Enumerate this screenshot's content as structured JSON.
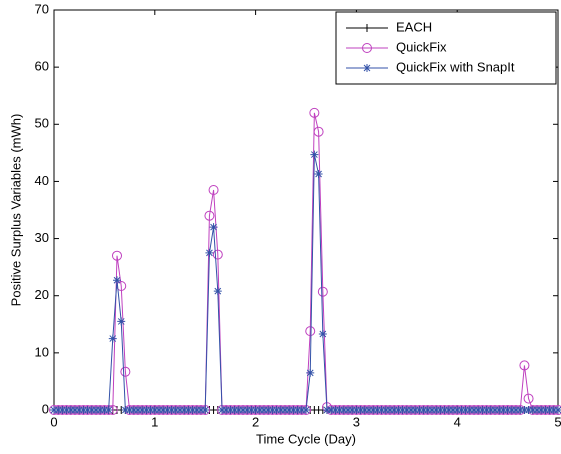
{
  "chart_data": {
    "type": "line",
    "xlabel": "Time Cycle (Day)",
    "ylabel": "Positive Surplus Variables (mWh)",
    "x": [
      0,
      0.042,
      0.083,
      0.125,
      0.167,
      0.208,
      0.25,
      0.292,
      0.333,
      0.375,
      0.417,
      0.458,
      0.5,
      0.542,
      0.583,
      0.625,
      0.667,
      0.708,
      0.75,
      0.792,
      0.833,
      0.875,
      0.917,
      0.958,
      1,
      1.042,
      1.083,
      1.125,
      1.167,
      1.208,
      1.25,
      1.292,
      1.333,
      1.375,
      1.417,
      1.458,
      1.5,
      1.542,
      1.583,
      1.625,
      1.667,
      1.708,
      1.75,
      1.792,
      1.833,
      1.875,
      1.917,
      1.958,
      2,
      2.042,
      2.083,
      2.125,
      2.167,
      2.208,
      2.25,
      2.292,
      2.333,
      2.375,
      2.417,
      2.458,
      2.5,
      2.542,
      2.583,
      2.625,
      2.667,
      2.708,
      2.75,
      2.792,
      2.833,
      2.875,
      2.917,
      2.958,
      3,
      3.042,
      3.083,
      3.125,
      3.167,
      3.208,
      3.25,
      3.292,
      3.333,
      3.375,
      3.417,
      3.458,
      3.5,
      3.542,
      3.583,
      3.625,
      3.667,
      3.708,
      3.75,
      3.792,
      3.833,
      3.875,
      3.917,
      3.958,
      4,
      4.042,
      4.083,
      4.125,
      4.167,
      4.208,
      4.25,
      4.292,
      4.333,
      4.375,
      4.417,
      4.458,
      4.5,
      4.542,
      4.583,
      4.625,
      4.667,
      4.708,
      4.75,
      4.792,
      4.833,
      4.875,
      4.917,
      4.958,
      5
    ],
    "series": [
      {
        "name": "EACH",
        "color": "#000000",
        "marker": "plus",
        "values": [
          0,
          0,
          0,
          0,
          0,
          0,
          0,
          0,
          0,
          0,
          0,
          0,
          0,
          0,
          0,
          0,
          0,
          0,
          0,
          0,
          0,
          0,
          0,
          0,
          0,
          0,
          0,
          0,
          0,
          0,
          0,
          0,
          0,
          0,
          0,
          0,
          0,
          0,
          0,
          0,
          0,
          0,
          0,
          0,
          0,
          0,
          0,
          0,
          0,
          0,
          0,
          0,
          0,
          0,
          0,
          0,
          0,
          0,
          0,
          0,
          0,
          0,
          0,
          0,
          0,
          0,
          0,
          0,
          0,
          0,
          0,
          0,
          0,
          0,
          0,
          0,
          0,
          0,
          0,
          0,
          0,
          0,
          0,
          0,
          0,
          0,
          0,
          0,
          0,
          0,
          0,
          0,
          0,
          0,
          0,
          0,
          0,
          0,
          0,
          0,
          0,
          0,
          0,
          0,
          0,
          0,
          0,
          0,
          0,
          0,
          0,
          0,
          0,
          0,
          0,
          0,
          0,
          0,
          0,
          0,
          0
        ]
      },
      {
        "name": "QuickFix",
        "color": "#bf40bf",
        "marker": "circle",
        "values": [
          0,
          0,
          0,
          0,
          0,
          0,
          0,
          0,
          0,
          0,
          0,
          0,
          0,
          0,
          0,
          27,
          21.7,
          6.7,
          0,
          0,
          0,
          0,
          0,
          0,
          0,
          0,
          0,
          0,
          0,
          0,
          0,
          0,
          0,
          0,
          0,
          0,
          0,
          34,
          38.5,
          27.2,
          0,
          0,
          0,
          0,
          0,
          0,
          0,
          0,
          0,
          0,
          0,
          0,
          0,
          0,
          0,
          0,
          0,
          0,
          0,
          0,
          0,
          13.8,
          52,
          48.7,
          20.7,
          0.5,
          0,
          0,
          0,
          0,
          0,
          0,
          0,
          0,
          0,
          0,
          0,
          0,
          0,
          0,
          0,
          0,
          0,
          0,
          0,
          0,
          0,
          0,
          0,
          0,
          0,
          0,
          0,
          0,
          0,
          0,
          0,
          0,
          0,
          0,
          0,
          0,
          0,
          0,
          0,
          0,
          0,
          0,
          0,
          0,
          0,
          0,
          7.8,
          2,
          0,
          0,
          0,
          0,
          0,
          0,
          0
        ]
      },
      {
        "name": "QuickFix with SnapIt",
        "color": "#3352a8",
        "marker": "star",
        "values": [
          0,
          0,
          0,
          0,
          0,
          0,
          0,
          0,
          0,
          0,
          0,
          0,
          0,
          0,
          12.5,
          22.7,
          15.5,
          0,
          0,
          0,
          0,
          0,
          0,
          0,
          0,
          0,
          0,
          0,
          0,
          0,
          0,
          0,
          0,
          0,
          0,
          0,
          0,
          27.5,
          32,
          20.8,
          0,
          0,
          0,
          0,
          0,
          0,
          0,
          0,
          0,
          0,
          0,
          0,
          0,
          0,
          0,
          0,
          0,
          0,
          0,
          0,
          0,
          6.5,
          44.7,
          41.3,
          13.3,
          0,
          0,
          0,
          0,
          0,
          0,
          0,
          0,
          0,
          0,
          0,
          0,
          0,
          0,
          0,
          0,
          0,
          0,
          0,
          0,
          0,
          0,
          0,
          0,
          0,
          0,
          0,
          0,
          0,
          0,
          0,
          0,
          0,
          0,
          0,
          0,
          0,
          0,
          0,
          0,
          0,
          0,
          0,
          0,
          0,
          0,
          0,
          0,
          0,
          0,
          0,
          0,
          0,
          0,
          0,
          0
        ]
      }
    ],
    "xlim": [
      0,
      5
    ],
    "xticks": [
      0,
      1,
      2,
      3,
      4,
      5
    ],
    "ylim": [
      0,
      70
    ],
    "yticks": [
      0,
      10,
      20,
      30,
      40,
      50,
      60,
      70
    ],
    "legend": "top-right"
  }
}
